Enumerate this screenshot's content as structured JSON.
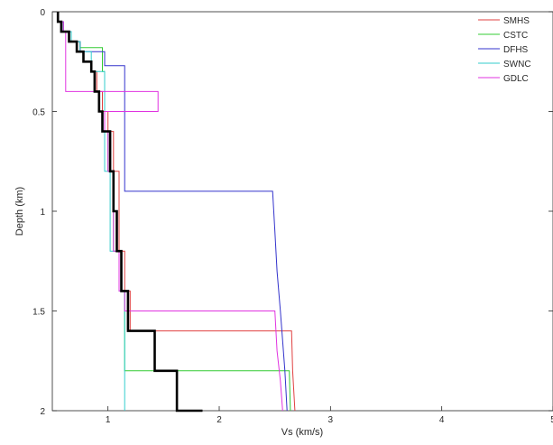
{
  "chart_data": {
    "type": "line",
    "xlabel": "Vs (km/s)",
    "ylabel": "Depth (km)",
    "xlim": [
      0.5,
      5
    ],
    "ylim": [
      0,
      2
    ],
    "y_reversed": true,
    "x_ticks": [
      "1",
      "2",
      "3",
      "4",
      "5"
    ],
    "y_ticks": [
      "0",
      "0.5",
      "1",
      "1.5",
      "2"
    ],
    "grid": false,
    "legend_position": "top-right",
    "series": [
      {
        "name": "SMHS",
        "color": "#e04040",
        "points": [
          [
            0.55,
            0
          ],
          [
            0.55,
            0.05
          ],
          [
            0.6,
            0.05
          ],
          [
            0.6,
            0.1
          ],
          [
            0.67,
            0.1
          ],
          [
            0.67,
            0.15
          ],
          [
            0.75,
            0.15
          ],
          [
            0.75,
            0.2
          ],
          [
            0.78,
            0.2
          ],
          [
            0.78,
            0.25
          ],
          [
            0.85,
            0.25
          ],
          [
            0.85,
            0.3
          ],
          [
            0.9,
            0.3
          ],
          [
            0.9,
            0.4
          ],
          [
            0.95,
            0.4
          ],
          [
            0.95,
            0.5
          ],
          [
            1.0,
            0.5
          ],
          [
            1.0,
            0.6
          ],
          [
            1.05,
            0.6
          ],
          [
            1.05,
            0.8
          ],
          [
            1.1,
            0.8
          ],
          [
            1.1,
            1.2
          ],
          [
            1.15,
            1.2
          ],
          [
            1.15,
            1.4
          ],
          [
            1.2,
            1.4
          ],
          [
            1.2,
            1.6
          ],
          [
            2.65,
            1.6
          ],
          [
            2.66,
            1.8
          ],
          [
            2.68,
            2.0
          ]
        ]
      },
      {
        "name": "CSTC",
        "color": "#33cc33",
        "points": [
          [
            0.55,
            0
          ],
          [
            0.55,
            0.05
          ],
          [
            0.6,
            0.05
          ],
          [
            0.6,
            0.1
          ],
          [
            0.67,
            0.1
          ],
          [
            0.67,
            0.15
          ],
          [
            0.75,
            0.15
          ],
          [
            0.75,
            0.18
          ],
          [
            0.95,
            0.18
          ],
          [
            0.95,
            0.3
          ],
          [
            0.97,
            0.3
          ],
          [
            0.97,
            0.6
          ],
          [
            1.0,
            0.6
          ],
          [
            1.0,
            0.8
          ],
          [
            1.05,
            0.8
          ],
          [
            1.05,
            1.2
          ],
          [
            1.1,
            1.2
          ],
          [
            1.1,
            1.4
          ],
          [
            1.15,
            1.4
          ],
          [
            1.15,
            1.8
          ],
          [
            2.63,
            1.8
          ],
          [
            2.64,
            2.0
          ]
        ]
      },
      {
        "name": "DFHS",
        "color": "#3333cc",
        "points": [
          [
            0.55,
            0
          ],
          [
            0.55,
            0.05
          ],
          [
            0.6,
            0.05
          ],
          [
            0.6,
            0.1
          ],
          [
            0.67,
            0.1
          ],
          [
            0.67,
            0.15
          ],
          [
            0.75,
            0.15
          ],
          [
            0.75,
            0.2
          ],
          [
            0.97,
            0.2
          ],
          [
            0.97,
            0.27
          ],
          [
            1.15,
            0.27
          ],
          [
            1.15,
            0.9
          ],
          [
            2.48,
            0.9
          ],
          [
            2.5,
            1.1
          ],
          [
            2.52,
            1.3
          ],
          [
            2.55,
            1.5
          ],
          [
            2.57,
            1.65
          ],
          [
            2.59,
            1.8
          ],
          [
            2.61,
            2.0
          ]
        ]
      },
      {
        "name": "SWNC",
        "color": "#33cccc",
        "points": [
          [
            0.55,
            0
          ],
          [
            0.55,
            0.05
          ],
          [
            0.6,
            0.05
          ],
          [
            0.6,
            0.1
          ],
          [
            0.67,
            0.1
          ],
          [
            0.67,
            0.15
          ],
          [
            0.75,
            0.15
          ],
          [
            0.75,
            0.2
          ],
          [
            0.85,
            0.2
          ],
          [
            0.85,
            0.3
          ],
          [
            0.97,
            0.3
          ],
          [
            0.97,
            0.8
          ],
          [
            1.02,
            0.8
          ],
          [
            1.02,
            1.2
          ],
          [
            1.1,
            1.2
          ],
          [
            1.1,
            1.4
          ],
          [
            1.15,
            1.4
          ],
          [
            1.15,
            2.0
          ]
        ]
      },
      {
        "name": "GDLC",
        "color": "#e033e0",
        "points": [
          [
            0.55,
            0
          ],
          [
            0.55,
            0.05
          ],
          [
            0.6,
            0.05
          ],
          [
            0.6,
            0.1
          ],
          [
            0.62,
            0.1
          ],
          [
            0.62,
            0.4
          ],
          [
            1.45,
            0.4
          ],
          [
            1.45,
            0.5
          ],
          [
            0.97,
            0.5
          ],
          [
            0.97,
            0.6
          ],
          [
            1.0,
            0.6
          ],
          [
            1.0,
            0.8
          ],
          [
            1.05,
            0.8
          ],
          [
            1.05,
            1.2
          ],
          [
            1.1,
            1.2
          ],
          [
            1.1,
            1.4
          ],
          [
            1.15,
            1.4
          ],
          [
            1.15,
            1.5
          ],
          [
            2.5,
            1.5
          ],
          [
            2.52,
            1.7
          ],
          [
            2.55,
            1.85
          ],
          [
            2.57,
            2.0
          ]
        ]
      },
      {
        "color": "#000000",
        "points": [
          [
            0.55,
            0
          ],
          [
            0.55,
            0.05
          ],
          [
            0.58,
            0.05
          ],
          [
            0.58,
            0.1
          ],
          [
            0.65,
            0.1
          ],
          [
            0.65,
            0.15
          ],
          [
            0.72,
            0.15
          ],
          [
            0.72,
            0.2
          ],
          [
            0.78,
            0.2
          ],
          [
            0.78,
            0.25
          ],
          [
            0.85,
            0.25
          ],
          [
            0.85,
            0.3
          ],
          [
            0.88,
            0.3
          ],
          [
            0.88,
            0.4
          ],
          [
            0.92,
            0.4
          ],
          [
            0.92,
            0.5
          ],
          [
            0.95,
            0.5
          ],
          [
            0.95,
            0.6
          ],
          [
            1.02,
            0.6
          ],
          [
            1.02,
            0.8
          ],
          [
            1.05,
            0.8
          ],
          [
            1.05,
            1.0
          ],
          [
            1.08,
            1.0
          ],
          [
            1.08,
            1.2
          ],
          [
            1.12,
            1.2
          ],
          [
            1.12,
            1.4
          ],
          [
            1.18,
            1.4
          ],
          [
            1.18,
            1.6
          ],
          [
            1.42,
            1.6
          ],
          [
            1.42,
            1.8
          ],
          [
            1.62,
            1.8
          ],
          [
            1.62,
            2.0
          ],
          [
            1.85,
            2.0
          ]
        ]
      }
    ]
  }
}
